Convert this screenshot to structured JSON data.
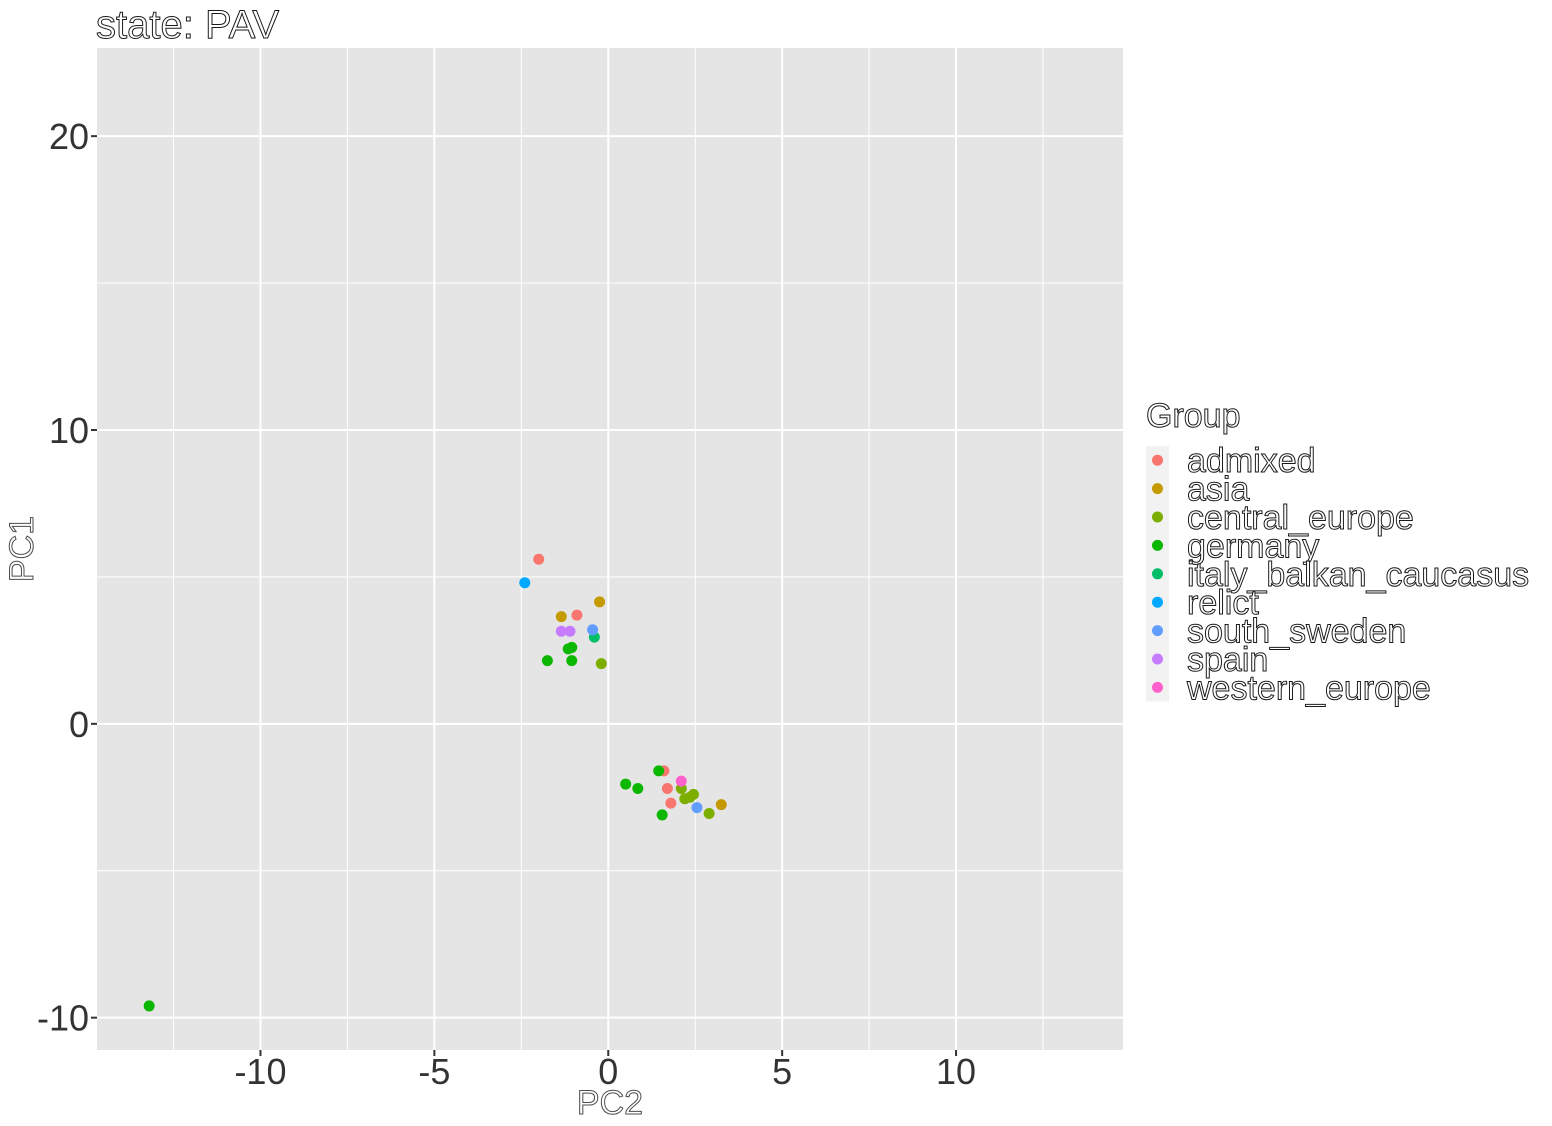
{
  "chart_data": {
    "type": "scatter",
    "title": "state: PAV",
    "xlabel": "PC2",
    "ylabel": "PC1",
    "xlim": [
      -14.7,
      14.8
    ],
    "ylim": [
      -11.1,
      23.0
    ],
    "x_ticks": [
      -10,
      -5,
      0,
      5,
      10
    ],
    "x_tick_labels": [
      "-10",
      "-5",
      "0",
      "5",
      "10"
    ],
    "y_ticks": [
      -10,
      0,
      10,
      20
    ],
    "y_tick_labels": [
      "-10",
      "0",
      "10",
      "20"
    ],
    "grid": true,
    "legend": {
      "title": "Group",
      "position": "right"
    },
    "series": [
      {
        "name": "admixed",
        "color": "#F8766D",
        "points": [
          [
            -2.0,
            5.6
          ],
          [
            -0.9,
            3.7
          ],
          [
            1.6,
            -1.6
          ],
          [
            1.7,
            -2.2
          ],
          [
            1.8,
            -2.7
          ]
        ]
      },
      {
        "name": "asia",
        "color": "#C49A00",
        "points": [
          [
            -1.35,
            3.65
          ],
          [
            -0.25,
            4.15
          ],
          [
            3.25,
            -2.75
          ]
        ]
      },
      {
        "name": "central_europe",
        "color": "#7CAE00",
        "points": [
          [
            -0.2,
            2.05
          ],
          [
            2.1,
            -2.2
          ],
          [
            2.2,
            -2.55
          ],
          [
            2.35,
            -2.5
          ],
          [
            2.45,
            -2.4
          ],
          [
            2.9,
            -3.05
          ]
        ]
      },
      {
        "name": "germany",
        "color": "#0CB702",
        "points": [
          [
            -13.2,
            -9.6
          ],
          [
            -1.75,
            2.15
          ],
          [
            -1.15,
            2.55
          ],
          [
            -1.05,
            2.6
          ],
          [
            -1.05,
            2.15
          ],
          [
            0.5,
            -2.05
          ],
          [
            0.85,
            -2.2
          ],
          [
            1.45,
            -1.6
          ],
          [
            1.55,
            -3.1
          ]
        ]
      },
      {
        "name": "italy_balkan_caucasus",
        "color": "#00BE67",
        "points": [
          [
            -0.4,
            2.95
          ]
        ]
      },
      {
        "name": "relict",
        "color": "#00A9FF",
        "points": [
          [
            -2.4,
            4.8
          ]
        ]
      },
      {
        "name": "south_sweden",
        "color": "#619CFF",
        "points": [
          [
            -0.45,
            3.2
          ],
          [
            2.55,
            -2.85
          ]
        ]
      },
      {
        "name": "spain",
        "color": "#C77CFF",
        "points": [
          [
            -1.35,
            3.15
          ],
          [
            -1.1,
            3.15
          ]
        ]
      },
      {
        "name": "western_europe",
        "color": "#FF61CC",
        "points": [
          [
            2.1,
            -1.95
          ]
        ]
      }
    ],
    "colors": {
      "panel_background": "#E5E5E5",
      "gridline": "#FFFFFF",
      "legend_key_background": "#F2F2F2"
    }
  }
}
